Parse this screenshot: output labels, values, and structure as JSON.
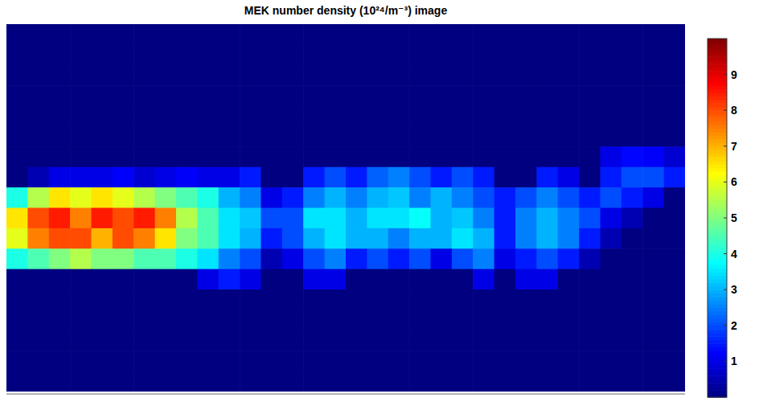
{
  "chart_data": {
    "type": "heatmap",
    "title": "MEK number density (10²⁴/m⁻³) image",
    "tick_labels": false,
    "cells": [
      [
        0,
        0,
        0,
        0,
        0,
        0,
        0,
        0,
        0,
        0,
        0,
        0,
        0,
        0,
        0,
        0,
        0,
        0,
        0,
        0,
        0,
        0,
        0,
        0,
        0,
        0,
        0,
        0,
        0,
        0,
        0,
        0
      ],
      [
        0,
        0,
        0,
        0,
        0,
        0,
        0,
        0,
        0,
        0,
        0,
        0,
        0,
        0,
        0,
        0,
        0,
        0,
        0,
        0,
        0,
        0,
        0,
        0,
        0,
        0,
        0,
        0,
        0,
        0,
        0,
        0
      ],
      [
        0,
        0,
        0,
        0,
        0,
        0,
        0,
        0,
        0,
        0,
        0,
        0,
        0,
        0,
        0,
        0,
        0,
        0,
        0,
        0,
        0,
        0,
        0,
        0,
        0,
        0,
        0,
        0,
        0,
        0,
        0,
        0
      ],
      [
        0,
        0,
        0,
        0,
        0,
        0,
        0,
        0,
        0,
        0,
        0,
        0,
        0,
        0,
        0,
        0,
        0,
        0,
        0,
        0,
        0,
        0,
        0,
        0,
        0,
        0,
        0,
        0,
        0,
        0,
        0,
        0
      ],
      [
        0,
        0,
        0,
        0,
        0,
        0,
        0,
        0,
        0,
        0,
        0,
        0,
        0,
        0,
        0,
        0,
        0,
        0,
        0,
        0,
        0,
        0,
        0,
        0,
        0,
        0,
        0,
        0,
        0,
        0,
        0,
        0
      ],
      [
        0,
        0,
        0,
        0,
        0,
        0,
        0,
        0,
        0,
        0,
        0,
        0,
        0,
        0,
        0,
        0,
        0,
        0,
        0,
        0,
        0,
        0,
        0,
        0,
        0,
        0,
        0,
        0,
        0,
        0,
        0,
        0
      ],
      [
        0,
        0,
        0,
        0,
        0,
        0,
        0,
        0,
        0,
        0,
        0,
        0,
        0,
        0,
        0,
        0,
        0,
        0,
        0,
        0,
        0,
        0,
        0,
        0,
        0,
        0,
        0,
        0,
        1,
        1.3,
        1.2,
        0.8
      ],
      [
        0,
        0.5,
        1,
        1,
        1,
        1.2,
        0.8,
        1,
        1.2,
        1,
        1,
        1.5,
        0,
        0,
        1.5,
        2,
        1.5,
        2.2,
        2.5,
        2,
        1.5,
        2,
        1.5,
        0,
        0,
        1.5,
        1,
        0,
        1.5,
        2,
        2,
        1.5
      ],
      [
        4,
        5.5,
        6.5,
        6,
        6.5,
        6,
        5.5,
        5,
        4.5,
        4,
        3,
        2.5,
        1,
        1.5,
        2.5,
        3,
        2.5,
        3,
        3.2,
        2.5,
        3,
        2.5,
        2,
        1.5,
        2,
        2.5,
        2,
        1.5,
        2,
        1.5,
        1,
        0
      ],
      [
        6.5,
        8,
        8.5,
        7.5,
        8.5,
        8,
        8.5,
        7.5,
        5.5,
        4.5,
        3.5,
        3.2,
        2,
        2,
        3.5,
        3.5,
        3,
        3.5,
        3.5,
        3.8,
        3,
        3.2,
        2.5,
        1.5,
        2.5,
        3,
        2.5,
        2,
        1,
        0.5,
        0,
        0
      ],
      [
        6,
        7.5,
        8,
        8,
        7,
        8,
        7.5,
        6.5,
        5,
        4.5,
        3.5,
        3,
        1.5,
        2,
        3,
        3.5,
        3,
        3,
        2.5,
        3,
        3,
        3.5,
        3,
        1.5,
        2.5,
        3,
        2.5,
        1.5,
        0.5,
        0,
        0,
        0
      ],
      [
        4,
        4.5,
        5,
        5.5,
        5,
        5,
        4.5,
        4.5,
        4,
        3.5,
        2.5,
        2,
        0.5,
        1,
        2,
        2.5,
        1.5,
        2,
        1.5,
        2,
        1,
        2,
        2.5,
        1,
        1.5,
        2,
        1.5,
        0.5,
        0,
        0,
        0,
        0
      ],
      [
        0,
        0,
        0,
        0,
        0,
        0,
        0,
        0,
        0,
        1,
        1.5,
        1,
        0,
        0,
        1,
        1,
        0,
        0,
        0,
        0,
        0,
        0,
        1,
        0,
        1,
        1,
        0,
        0,
        0,
        0,
        0,
        0
      ],
      [
        0,
        0,
        0,
        0,
        0,
        0,
        0,
        0,
        0,
        0,
        0,
        0,
        0,
        0,
        0,
        0,
        0,
        0,
        0,
        0,
        0,
        0,
        0,
        0,
        0,
        0,
        0,
        0,
        0,
        0,
        0,
        0
      ],
      [
        0,
        0,
        0,
        0,
        0,
        0,
        0,
        0,
        0,
        0,
        0,
        0,
        0,
        0,
        0,
        0,
        0,
        0,
        0,
        0,
        0,
        0,
        0,
        0,
        0,
        0,
        0,
        0,
        0,
        0,
        0,
        0
      ],
      [
        0,
        0,
        0,
        0,
        0,
        0,
        0,
        0,
        0,
        0,
        0,
        0,
        0,
        0,
        0,
        0,
        0,
        0,
        0,
        0,
        0,
        0,
        0,
        0,
        0,
        0,
        0,
        0,
        0,
        0,
        0,
        0
      ],
      [
        0,
        0,
        0,
        0,
        0,
        0,
        0,
        0,
        0,
        0,
        0,
        0,
        0,
        0,
        0,
        0,
        0,
        0,
        0,
        0,
        0,
        0,
        0,
        0,
        0,
        0,
        0,
        0,
        0,
        0,
        0,
        0
      ],
      [
        0,
        0,
        0,
        0,
        0,
        0,
        0,
        0,
        0,
        0,
        0,
        0,
        0,
        0,
        0,
        0,
        0,
        0,
        0,
        0,
        0,
        0,
        0,
        0,
        0,
        0,
        0,
        0,
        0,
        0,
        0,
        0
      ]
    ],
    "colorbar": {
      "range": [
        0,
        10
      ],
      "ticks": [
        1,
        2,
        3,
        4,
        5,
        6,
        7,
        8,
        9
      ]
    }
  }
}
